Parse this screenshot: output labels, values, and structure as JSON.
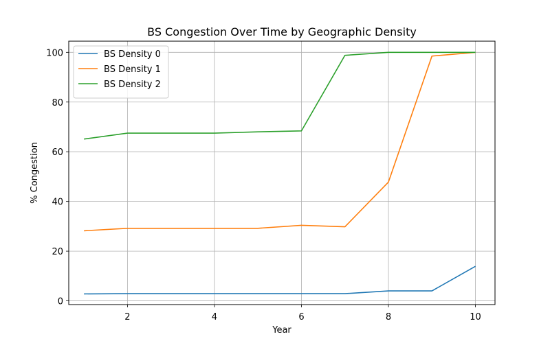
{
  "chart_data": {
    "type": "line",
    "title": "BS Congestion Over Time by Geographic Density",
    "xlabel": "Year",
    "ylabel": "% Congestion",
    "x": [
      1,
      2,
      3,
      4,
      5,
      6,
      7,
      8,
      9,
      10
    ],
    "xlim": [
      0.65,
      10.45
    ],
    "ylim": [
      -1.5,
      104.5
    ],
    "xticks": [
      2,
      4,
      6,
      8,
      10
    ],
    "yticks": [
      0,
      20,
      40,
      60,
      80,
      100
    ],
    "grid": true,
    "legend_position": "top-left",
    "series": [
      {
        "name": "BS Density 0",
        "color": "#1f77b4",
        "values": [
          2.8,
          2.9,
          2.9,
          2.9,
          2.9,
          2.9,
          2.9,
          4.0,
          4.0,
          13.9
        ]
      },
      {
        "name": "BS Density 1",
        "color": "#ff7f0e",
        "values": [
          28.2,
          29.2,
          29.2,
          29.2,
          29.2,
          30.4,
          29.8,
          47.8,
          98.5,
          100.0
        ]
      },
      {
        "name": "BS Density 2",
        "color": "#2ca02c",
        "values": [
          65.1,
          67.5,
          67.5,
          67.5,
          68.0,
          68.4,
          98.8,
          100.0,
          100.0,
          100.0
        ]
      }
    ]
  }
}
